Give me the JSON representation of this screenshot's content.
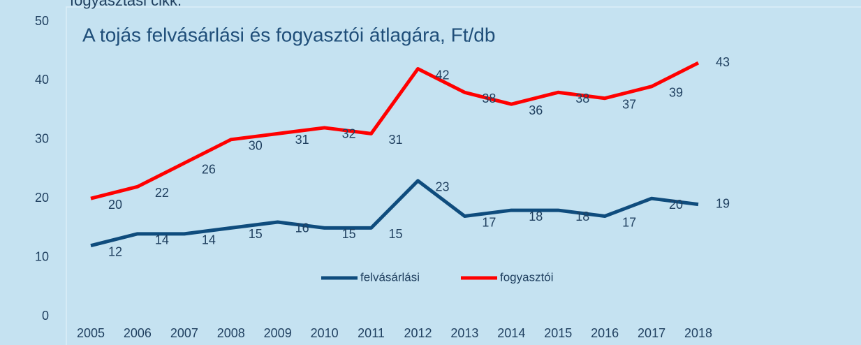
{
  "caption_fragment": "fogyasztási cikk.",
  "chart_data": {
    "type": "line",
    "title": "A tojás felvásárlási és fogyasztói átlagára, Ft/db",
    "categories": [
      "2005",
      "2006",
      "2007",
      "2008",
      "2009",
      "2010",
      "2011",
      "2012",
      "2013",
      "2014",
      "2015",
      "2016",
      "2017",
      "2018"
    ],
    "series": [
      {
        "name": "felvásárlási",
        "color": "#0f4c7d",
        "values": [
          12,
          14,
          14,
          15,
          16,
          15,
          15,
          23,
          17,
          18,
          18,
          17,
          20,
          19
        ]
      },
      {
        "name": "fogyasztói",
        "color": "#ff0000",
        "values": [
          20,
          22,
          26,
          30,
          31,
          32,
          31,
          42,
          38,
          36,
          38,
          37,
          39,
          43
        ]
      }
    ],
    "ylim": [
      0,
      50
    ],
    "yticks": [
      0,
      10,
      20,
      30,
      40,
      50
    ],
    "legend": "bottom"
  }
}
